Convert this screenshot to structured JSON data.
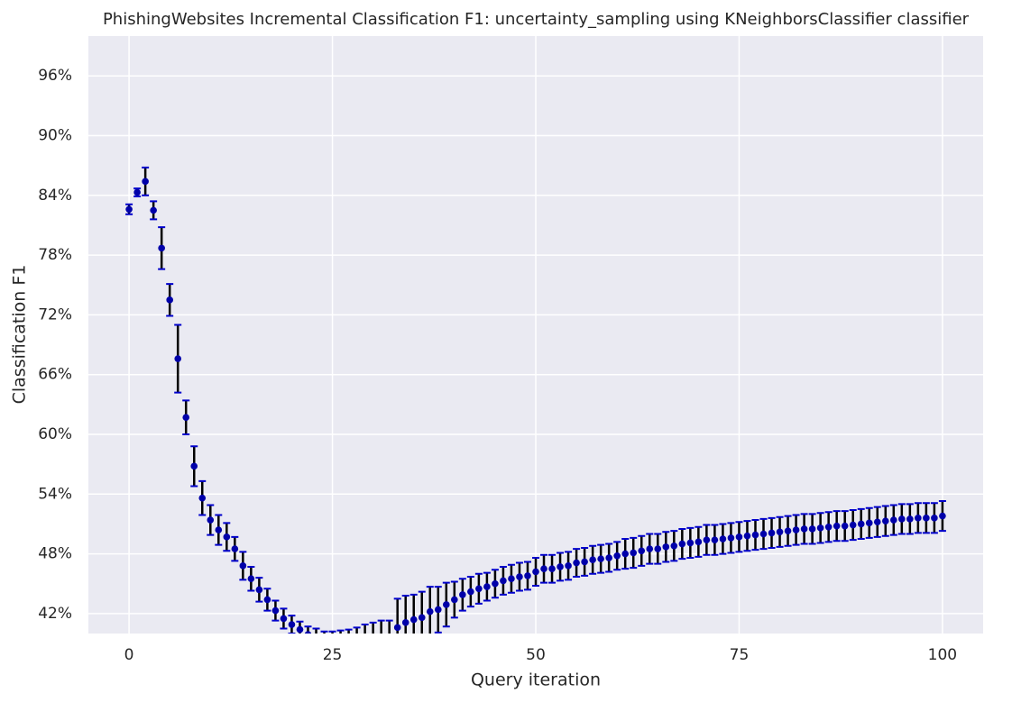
{
  "chart_data": {
    "type": "errorbar",
    "title": "PhishingWebsites Incremental Classification F1: uncertainty_sampling using KNeighborsClassifier classifier",
    "x_label": "Query iteration",
    "y_label": "Classification F1",
    "x": [
      0,
      1,
      2,
      3,
      4,
      5,
      6,
      7,
      8,
      9,
      10,
      11,
      12,
      13,
      14,
      15,
      16,
      17,
      18,
      19,
      20,
      21,
      22,
      23,
      24,
      25,
      26,
      27,
      28,
      29,
      30,
      31,
      32,
      33,
      34,
      35,
      36,
      37,
      38,
      39,
      40,
      41,
      42,
      43,
      44,
      45,
      46,
      47,
      48,
      49,
      50,
      51,
      52,
      53,
      54,
      55,
      56,
      57,
      58,
      59,
      60,
      61,
      62,
      63,
      64,
      65,
      66,
      67,
      68,
      69,
      70,
      71,
      72,
      73,
      74,
      75,
      76,
      77,
      78,
      79,
      80,
      81,
      82,
      83,
      84,
      85,
      86,
      87,
      88,
      89,
      90,
      91,
      92,
      93,
      94,
      95,
      96,
      97,
      98,
      99,
      100
    ],
    "values": [
      82.6,
      84.3,
      85.4,
      82.5,
      78.7,
      73.5,
      67.6,
      61.7,
      56.8,
      53.6,
      51.4,
      50.4,
      49.7,
      48.5,
      46.8,
      45.5,
      44.4,
      43.4,
      42.3,
      41.5,
      40.9,
      40.4,
      39.9,
      39.5,
      39.2,
      39.0,
      38.9,
      38.8,
      38.8,
      38.9,
      38.9,
      39.0,
      39.0,
      40.6,
      41.1,
      41.4,
      41.6,
      42.2,
      42.4,
      42.9,
      43.4,
      43.9,
      44.2,
      44.5,
      44.7,
      45.0,
      45.3,
      45.5,
      45.7,
      45.8,
      46.2,
      46.5,
      46.5,
      46.7,
      46.8,
      47.1,
      47.2,
      47.4,
      47.5,
      47.6,
      47.8,
      48.0,
      48.1,
      48.3,
      48.5,
      48.5,
      48.7,
      48.8,
      49.0,
      49.1,
      49.2,
      49.4,
      49.4,
      49.5,
      49.6,
      49.7,
      49.8,
      49.9,
      50.0,
      50.1,
      50.2,
      50.3,
      50.4,
      50.5,
      50.5,
      50.6,
      50.7,
      50.8,
      50.8,
      50.9,
      51.0,
      51.1,
      51.2,
      51.3,
      51.4,
      51.5,
      51.5,
      51.6,
      51.6,
      51.6,
      51.8
    ],
    "errors": [
      0.5,
      0.4,
      1.4,
      0.9,
      2.1,
      1.6,
      3.4,
      1.7,
      2.0,
      1.7,
      1.5,
      1.5,
      1.4,
      1.2,
      1.4,
      1.2,
      1.2,
      1.1,
      1.0,
      1.0,
      0.9,
      0.8,
      0.8,
      1.0,
      1.0,
      1.2,
      1.4,
      1.6,
      1.8,
      2.0,
      2.2,
      2.3,
      2.3,
      2.9,
      2.7,
      2.5,
      2.6,
      2.5,
      2.3,
      2.2,
      1.8,
      1.6,
      1.5,
      1.5,
      1.4,
      1.4,
      1.4,
      1.4,
      1.4,
      1.4,
      1.4,
      1.4,
      1.4,
      1.4,
      1.4,
      1.4,
      1.4,
      1.4,
      1.4,
      1.4,
      1.4,
      1.5,
      1.5,
      1.5,
      1.5,
      1.5,
      1.5,
      1.5,
      1.5,
      1.5,
      1.5,
      1.5,
      1.5,
      1.5,
      1.5,
      1.5,
      1.5,
      1.5,
      1.5,
      1.5,
      1.5,
      1.5,
      1.5,
      1.5,
      1.5,
      1.5,
      1.5,
      1.5,
      1.5,
      1.5,
      1.5,
      1.5,
      1.5,
      1.5,
      1.5,
      1.5,
      1.5,
      1.5,
      1.5,
      1.5,
      1.5
    ],
    "color": "#0000aa",
    "error_color": "#000000",
    "cap_color": "#0000cc",
    "xlim": [
      -5,
      105
    ],
    "ylim": [
      40,
      100
    ],
    "xticks": [
      0,
      25,
      50,
      75,
      100
    ],
    "yticks": [
      {
        "value": 42,
        "label": "42%"
      },
      {
        "value": 48,
        "label": "48%"
      },
      {
        "value": 54,
        "label": "54%"
      },
      {
        "value": 60,
        "label": "60%"
      },
      {
        "value": 66,
        "label": "66%"
      },
      {
        "value": 72,
        "label": "72%"
      },
      {
        "value": 78,
        "label": "78%"
      },
      {
        "value": 84,
        "label": "84%"
      },
      {
        "value": 90,
        "label": "90%"
      },
      {
        "value": 96,
        "label": "96%"
      }
    ],
    "grid": true
  }
}
